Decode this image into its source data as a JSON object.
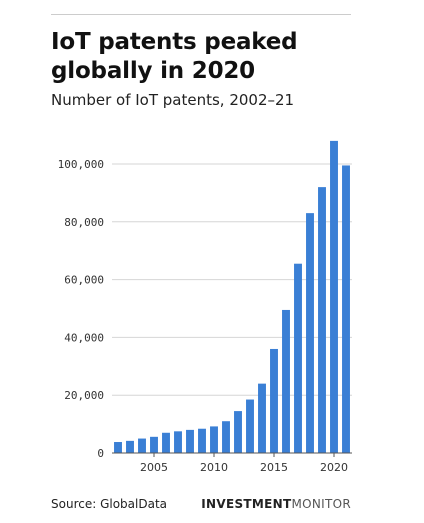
{
  "header": {
    "title": "IoT patents peaked globally in 2020",
    "subtitle": "Number of IoT patents, 2002–21"
  },
  "footer": {
    "source": "Source: GlobalData",
    "brand_bold": "INVESTMENT",
    "brand_light": "MONITOR"
  },
  "colors": {
    "bar": "#3a7fd5",
    "grid": "#d6d6d6",
    "baseline": "#555555"
  },
  "chart_data": {
    "type": "bar",
    "title": "IoT patents peaked globally in 2020",
    "subtitle": "Number of IoT patents, 2002–21",
    "xlabel": "",
    "ylabel": "",
    "categories": [
      2002,
      2003,
      2004,
      2005,
      2006,
      2007,
      2008,
      2009,
      2010,
      2011,
      2012,
      2013,
      2014,
      2015,
      2016,
      2017,
      2018,
      2019,
      2020,
      2021
    ],
    "values": [
      3800,
      4200,
      5000,
      5600,
      7000,
      7500,
      8000,
      8400,
      9200,
      11000,
      14500,
      18500,
      24000,
      36000,
      49500,
      65500,
      83000,
      92000,
      108000,
      99500
    ],
    "ylim": [
      0,
      110000
    ],
    "yticks": [
      0,
      20000,
      40000,
      60000,
      80000,
      100000
    ],
    "ytick_labels": [
      "0",
      "20,000",
      "40,000",
      "60,000",
      "80,000",
      "100,000"
    ],
    "xticks": [
      2005,
      2010,
      2015,
      2020
    ],
    "xtick_labels": [
      "2005",
      "2010",
      "2015",
      "2020"
    ],
    "grid": true,
    "legend": "none"
  }
}
